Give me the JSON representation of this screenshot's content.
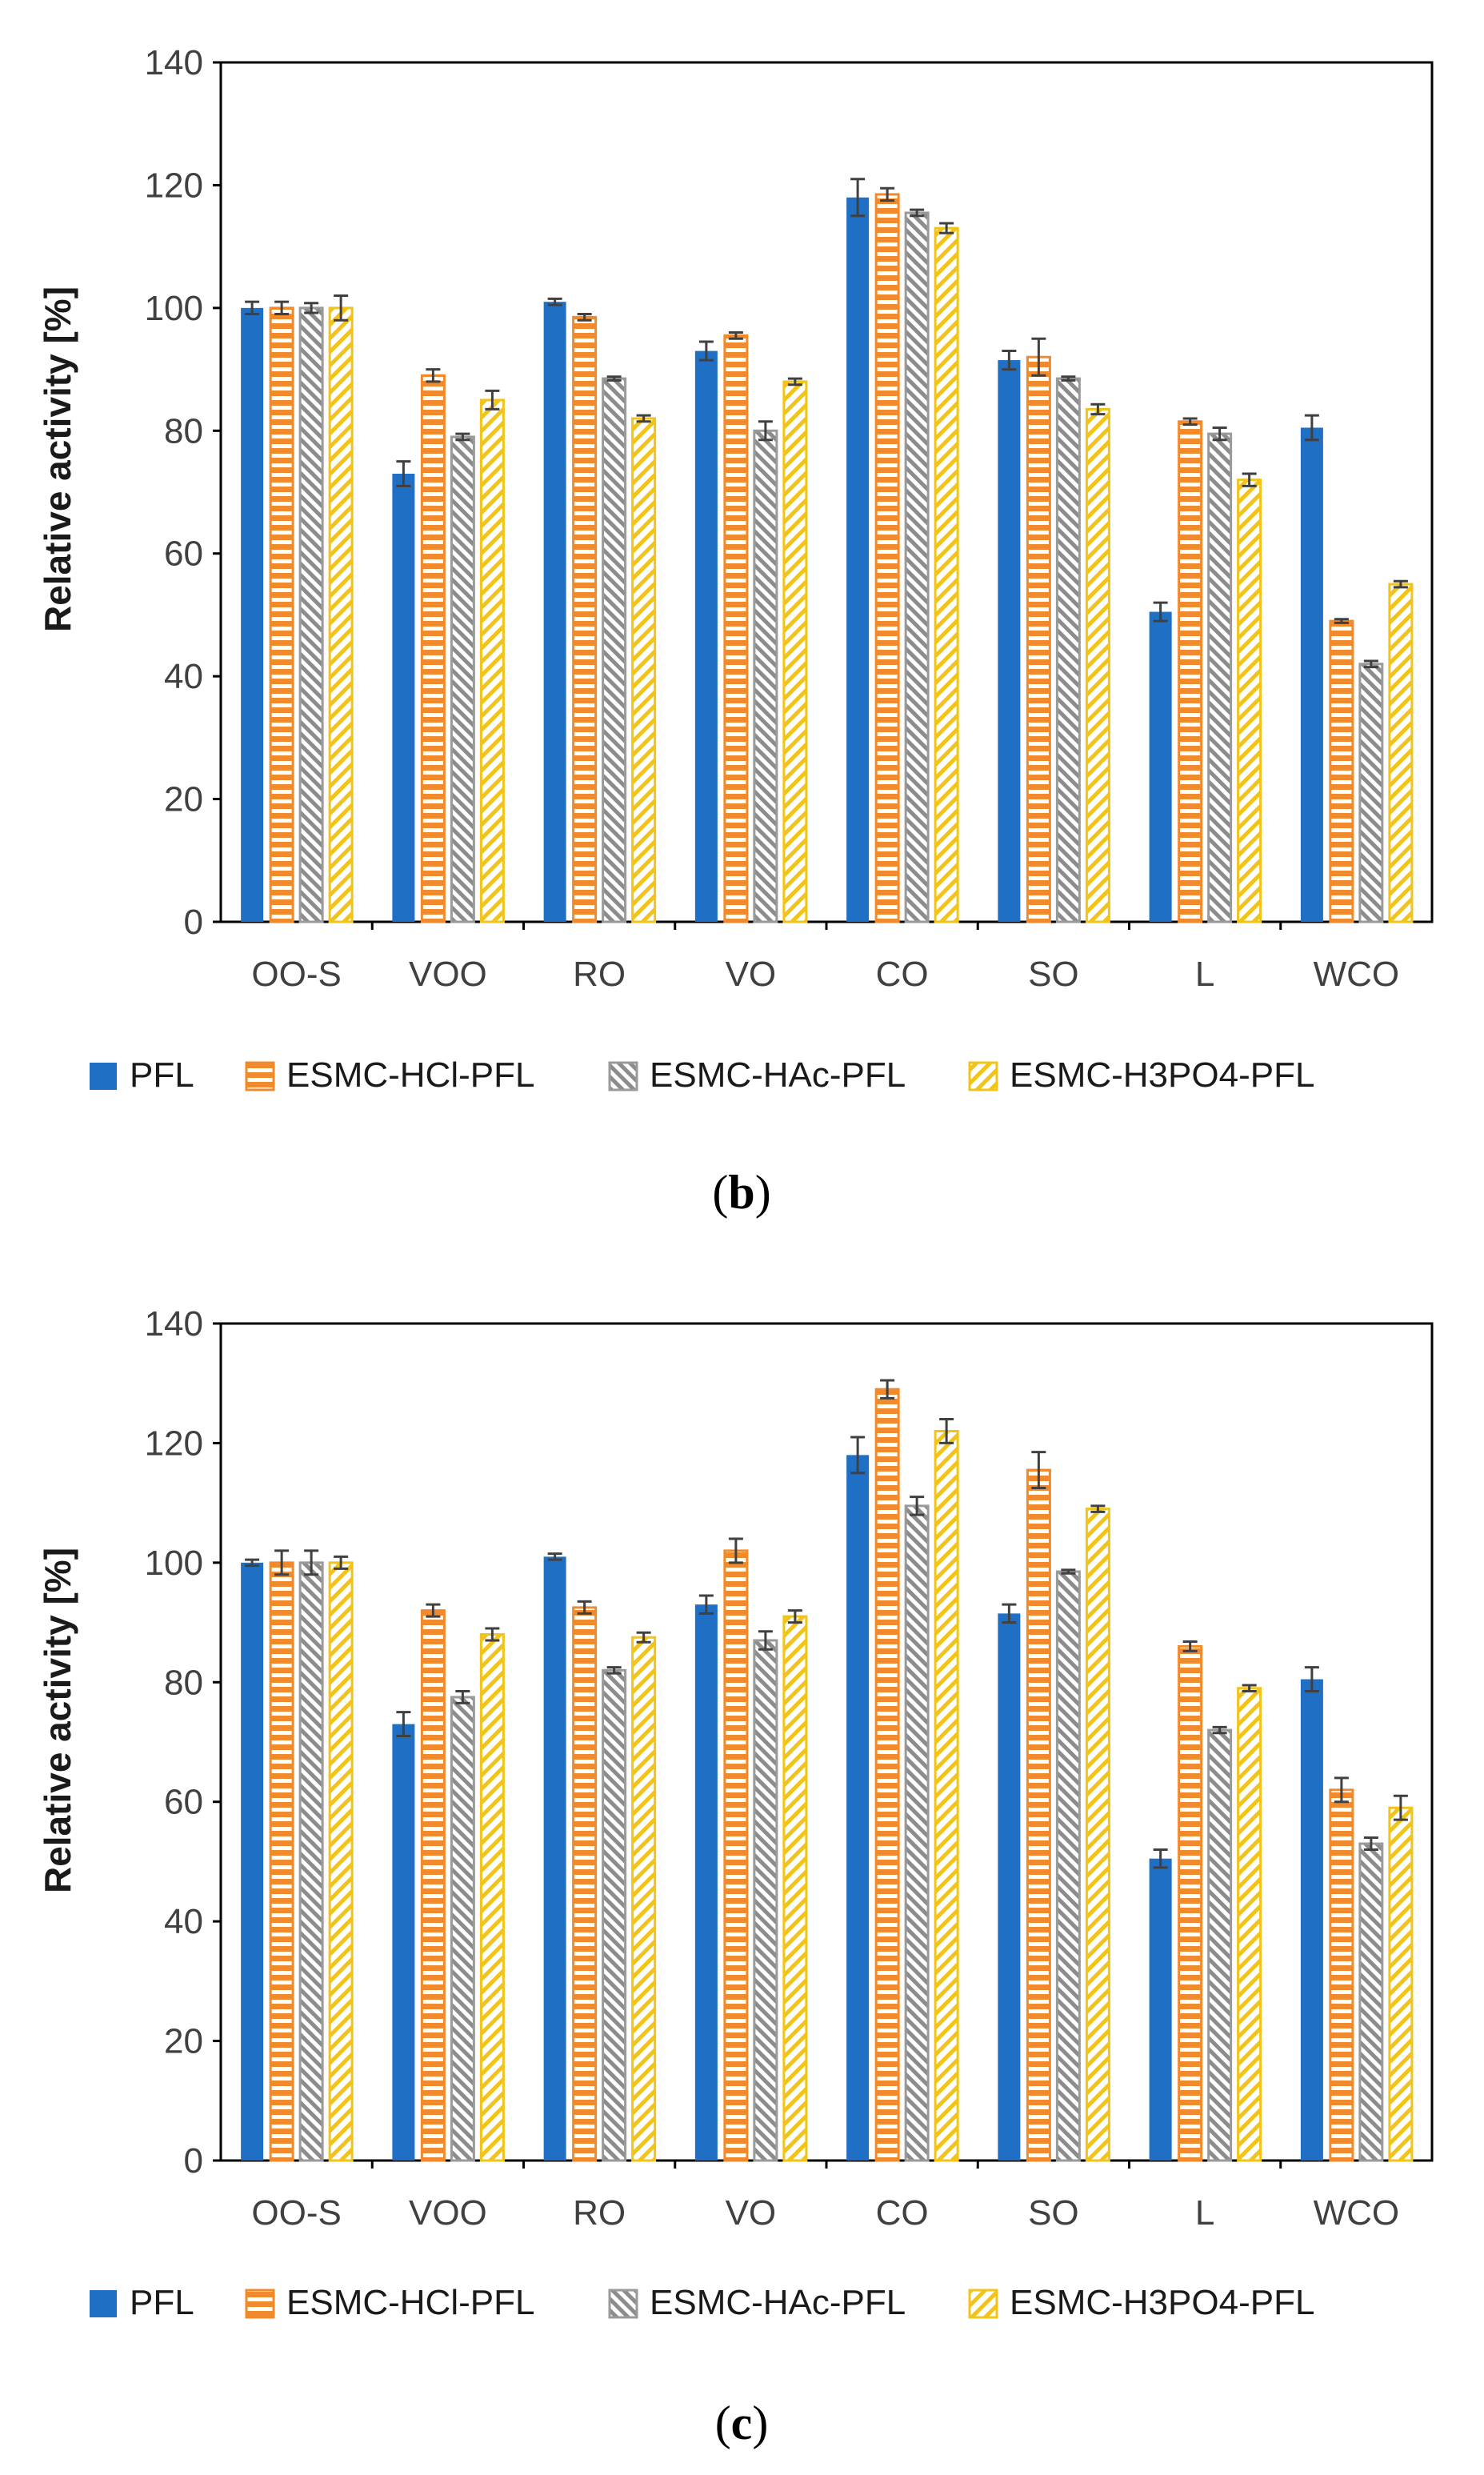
{
  "colors": {
    "PFL": "#1f6fc4",
    "ESMC-HCl-PFL": "#f08a2c",
    "ESMC-HAc-PFL": "#9a9a9a",
    "ESMC-H3PO4-PFL": "#f2c318",
    "axis": "#000000",
    "errorbar": "#404040"
  },
  "chart_data": [
    {
      "type": "bar",
      "panel": "b",
      "caption_letter": "b",
      "caption_open": "(",
      "caption_close": ")",
      "ylabel": "Relative activity [%]",
      "xlabel": "",
      "ylim": [
        0,
        140
      ],
      "yticks": [
        "0",
        "20",
        "40",
        "60",
        "80",
        "100",
        "120",
        "140"
      ],
      "grid": false,
      "legend_position": "bottom",
      "categories": [
        "OO-S",
        "VOO",
        "RO",
        "VO",
        "CO",
        "SO",
        "L",
        "WCO"
      ],
      "series": [
        {
          "name": "PFL",
          "icon": "solid-swatch",
          "values": [
            100,
            73,
            101,
            93,
            118,
            91.5,
            50.5,
            80.5
          ],
          "errors": [
            1,
            2,
            0.5,
            1.5,
            3,
            1.5,
            1.5,
            2
          ]
        },
        {
          "name": "ESMC-HCl-PFL",
          "icon": "horizontal-stripes-swatch",
          "values": [
            100,
            89,
            98.5,
            95.5,
            118.5,
            92,
            81.5,
            49
          ],
          "errors": [
            1,
            1,
            0.5,
            0.5,
            1,
            3,
            0.5,
            0.3
          ]
        },
        {
          "name": "ESMC-HAc-PFL",
          "icon": "diagonal-hatch-swatch",
          "values": [
            100,
            79,
            88.5,
            80,
            115.5,
            88.5,
            79.5,
            42
          ],
          "errors": [
            0.8,
            0.5,
            0.3,
            1.5,
            0.5,
            0.3,
            1,
            0.5
          ]
        },
        {
          "name": "ESMC-H3PO4-PFL",
          "icon": "yellow-hatch-swatch",
          "values": [
            100,
            85,
            82,
            88,
            113,
            83.5,
            72,
            55
          ],
          "errors": [
            2,
            1.5,
            0.5,
            0.5,
            0.8,
            0.8,
            1,
            0.5
          ]
        }
      ]
    },
    {
      "type": "bar",
      "panel": "c",
      "caption_letter": "c",
      "caption_open": "(",
      "caption_close": ")",
      "ylabel": "Relative activity [%]",
      "xlabel": "",
      "ylim": [
        0,
        140
      ],
      "yticks": [
        "0",
        "20",
        "40",
        "60",
        "80",
        "100",
        "120",
        "140"
      ],
      "grid": false,
      "legend_position": "bottom",
      "categories": [
        "OO-S",
        "VOO",
        "RO",
        "VO",
        "CO",
        "SO",
        "L",
        "WCO"
      ],
      "series": [
        {
          "name": "PFL",
          "icon": "solid-swatch",
          "values": [
            100,
            73,
            101,
            93,
            118,
            91.5,
            50.5,
            80.5
          ],
          "errors": [
            0.5,
            2,
            0.5,
            1.5,
            3,
            1.5,
            1.5,
            2
          ]
        },
        {
          "name": "ESMC-HCl-PFL",
          "icon": "horizontal-stripes-swatch",
          "values": [
            100,
            92,
            92.5,
            102,
            129,
            115.5,
            86,
            62
          ],
          "errors": [
            2,
            1,
            1,
            2,
            1.5,
            3,
            0.8,
            2
          ]
        },
        {
          "name": "ESMC-HAc-PFL",
          "icon": "diagonal-hatch-swatch",
          "values": [
            100,
            77.5,
            82,
            87,
            109.5,
            98.5,
            72,
            53
          ],
          "errors": [
            2,
            1,
            0.5,
            1.5,
            1.5,
            0.3,
            0.5,
            1
          ]
        },
        {
          "name": "ESMC-H3PO4-PFL",
          "icon": "yellow-hatch-swatch",
          "values": [
            100,
            88,
            87.5,
            91,
            122,
            109,
            79,
            59
          ],
          "errors": [
            1,
            1,
            0.8,
            1,
            2,
            0.5,
            0.5,
            2
          ]
        }
      ]
    }
  ]
}
